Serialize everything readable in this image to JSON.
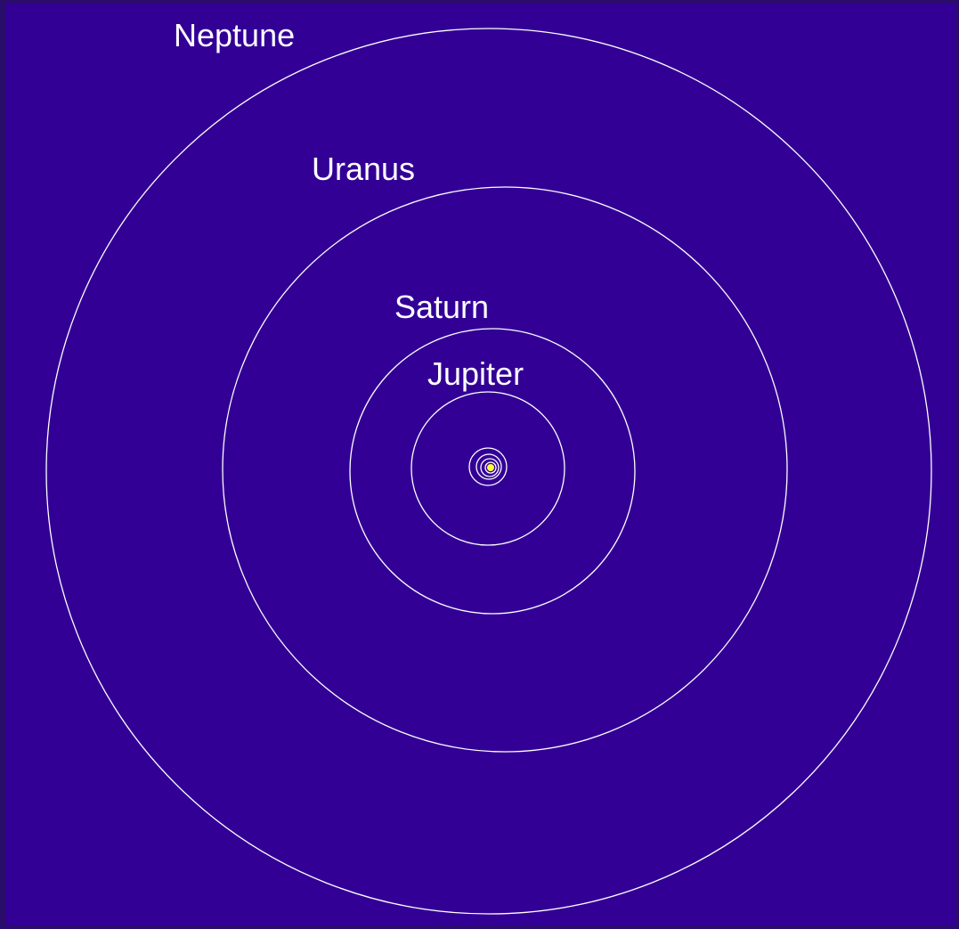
{
  "diagram": {
    "labels": {
      "neptune": "Neptune",
      "uranus": "Uranus",
      "saturn": "Saturn",
      "jupiter": "Jupiter"
    }
  }
}
